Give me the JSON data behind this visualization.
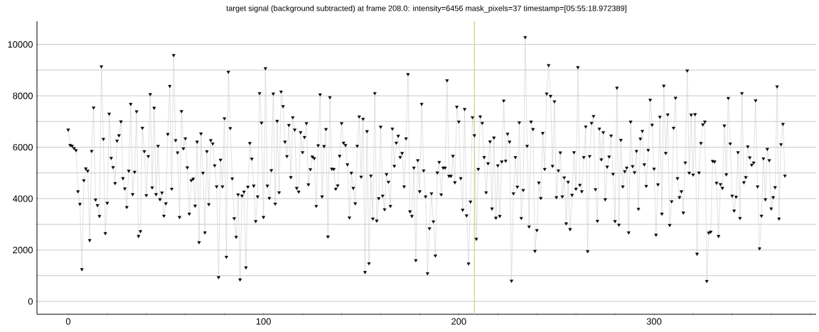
{
  "chart_data": {
    "type": "line",
    "title": "target signal (background subtracted) at frame 208.0: intensity=6456 mask_pixels=37 timestamp=[05:55:18.972389]",
    "x": [
      0,
      1,
      2,
      3,
      4,
      5,
      6,
      7,
      8,
      9,
      10,
      11,
      12,
      13,
      14,
      15,
      16,
      17,
      18,
      19,
      20,
      21,
      22,
      23,
      24,
      25,
      26,
      27,
      28,
      29,
      30,
      31,
      32,
      33,
      34,
      35,
      36,
      37,
      38,
      39,
      40,
      41,
      42,
      43,
      44,
      45,
      46,
      47,
      48,
      49,
      50,
      51,
      52,
      53,
      54,
      55,
      56,
      57,
      58,
      59,
      60,
      61,
      62,
      63,
      64,
      65,
      66,
      67,
      68,
      69,
      70,
      71,
      72,
      73,
      74,
      75,
      76,
      77,
      78,
      79,
      80,
      81,
      82,
      83,
      84,
      85,
      86,
      87,
      88,
      89,
      90,
      91,
      92,
      93,
      94,
      95,
      96,
      97,
      98,
      99,
      100,
      101,
      102,
      103,
      104,
      105,
      106,
      107,
      108,
      109,
      110,
      111,
      112,
      113,
      114,
      115,
      116,
      117,
      118,
      119,
      120,
      121,
      122,
      123,
      124,
      125,
      126,
      127,
      128,
      129,
      130,
      131,
      132,
      133,
      134,
      135,
      136,
      137,
      138,
      139,
      140,
      141,
      142,
      143,
      144,
      145,
      146,
      147,
      148,
      149,
      150,
      151,
      152,
      153,
      154,
      155,
      156,
      157,
      158,
      159,
      160,
      161,
      162,
      163,
      164,
      165,
      166,
      167,
      168,
      169,
      170,
      171,
      172,
      173,
      174,
      175,
      176,
      177,
      178,
      179,
      180,
      181,
      182,
      183,
      184,
      185,
      186,
      187,
      188,
      189,
      190,
      191,
      192,
      193,
      194,
      195,
      196,
      197,
      198,
      199,
      200,
      201,
      202,
      203,
      204,
      205,
      206,
      207,
      208,
      209,
      210,
      211,
      212,
      213,
      214,
      215,
      216,
      217,
      218,
      219,
      220,
      221,
      222,
      223,
      224,
      225,
      226,
      227,
      228,
      229,
      230,
      231,
      232,
      233,
      234,
      235,
      236,
      237,
      238,
      239,
      240,
      241,
      242,
      243,
      244,
      245,
      246,
      247,
      248,
      249,
      250,
      251,
      252,
      253,
      254,
      255,
      256,
      257,
      258,
      259,
      260,
      261,
      262,
      263,
      264,
      265,
      266,
      267,
      268,
      269,
      270,
      271,
      272,
      273,
      274,
      275,
      276,
      277,
      278,
      279,
      280,
      281,
      282,
      283,
      284,
      285,
      286,
      287,
      288,
      289,
      290,
      291,
      292,
      293,
      294,
      295,
      296,
      297,
      298,
      299,
      300,
      301,
      302,
      303,
      304,
      305,
      306,
      307,
      308,
      309,
      310,
      311,
      312,
      313,
      314,
      315,
      316,
      317,
      318,
      319,
      320,
      321,
      322,
      323,
      324,
      325,
      326,
      327,
      328,
      329,
      330,
      331,
      332,
      333,
      334,
      335,
      336,
      337,
      338,
      339,
      340,
      341,
      342,
      343,
      344,
      345,
      346,
      347,
      348,
      349,
      350,
      351,
      352,
      353,
      354,
      355,
      356,
      357,
      358,
      359,
      360,
      361,
      362,
      363,
      364,
      365,
      366,
      367
    ],
    "values": [
      6680,
      6080,
      6050,
      5960,
      5880,
      4280,
      3790,
      1250,
      4710,
      5170,
      5080,
      2380,
      5850,
      7540,
      3960,
      3740,
      3320,
      9140,
      6320,
      2650,
      3830,
      7300,
      5580,
      5220,
      4600,
      6250,
      6460,
      7000,
      4790,
      4390,
      3670,
      5080,
      7680,
      4170,
      5040,
      7390,
      2540,
      2730,
      6750,
      5840,
      4130,
      5650,
      8060,
      4430,
      7530,
      4170,
      6050,
      3970,
      4230,
      3330,
      3810,
      6510,
      8380,
      4380,
      9580,
      6270,
      5790,
      3280,
      7400,
      5950,
      6340,
      5210,
      3410,
      4710,
      4770,
      3720,
      6210,
      2300,
      6530,
      5000,
      2680,
      5840,
      3780,
      6270,
      6140,
      5290,
      4470,
      940,
      5510,
      4470,
      7120,
      1730,
      8930,
      6740,
      4780,
      3230,
      2510,
      4160,
      850,
      4110,
      4270,
      1320,
      4460,
      6160,
      5550,
      4500,
      3120,
      4080,
      8100,
      6950,
      3280,
      9070,
      4500,
      4020,
      5100,
      8080,
      3800,
      7020,
      4240,
      8160,
      7590,
      6210,
      5650,
      6860,
      4830,
      7160,
      6680,
      4410,
      4270,
      6580,
      5800,
      6390,
      6930,
      4550,
      5140,
      5630,
      5570,
      3710,
      6070,
      8050,
      4080,
      6040,
      6700,
      2520,
      7940,
      5160,
      5150,
      4380,
      4510,
      5660,
      6930,
      6170,
      6080,
      5330,
      3260,
      5000,
      4410,
      3810,
      6050,
      7190,
      4850,
      7100,
      1140,
      6620,
      1480,
      4890,
      3220,
      8100,
      3140,
      4010,
      6790,
      4110,
      3580,
      4950,
      4650,
      3710,
      6720,
      5270,
      6170,
      6440,
      5610,
      5770,
      4470,
      6340,
      8840,
      3500,
      3320,
      5200,
      1600,
      5490,
      4280,
      7680,
      5090,
      4080,
      1090,
      2840,
      4200,
      3110,
      1780,
      5010,
      5420,
      4160,
      5200,
      5200,
      8600,
      4880,
      4880,
      5660,
      4630,
      7570,
      6990,
      4790,
      3560,
      7480,
      3340,
      1470,
      3880,
      7160,
      6460,
      2430,
      5150,
      7190,
      6940,
      5610,
      4240,
      5370,
      6220,
      3610,
      6370,
      3250,
      5290,
      3320,
      5440,
      7810,
      5470,
      6520,
      6210,
      800,
      4200,
      5610,
      4460,
      6960,
      3240,
      4330,
      10280,
      6050,
      2910,
      6990,
      6700,
      1960,
      2770,
      4620,
      4020,
      6550,
      5150,
      8080,
      9190,
      7990,
      5270,
      7780,
      4050,
      5090,
      5790,
      4080,
      4820,
      3030,
      4650,
      2810,
      4140,
      5800,
      4380,
      9110,
      4530,
      4280,
      5610,
      6800,
      1950,
      5650,
      6940,
      7210,
      4360,
      3130,
      6720,
      5520,
      6580,
      3970,
      5240,
      5630,
      6450,
      4960,
      3120,
      8310,
      2980,
      6280,
      4470,
      5060,
      5200,
      2680,
      6990,
      5260,
      5020,
      5850,
      3600,
      6330,
      6630,
      5330,
      4490,
      5890,
      7840,
      6870,
      5160,
      2590,
      4550,
      7180,
      3410,
      8390,
      5770,
      7270,
      2970,
      3890,
      6750,
      7920,
      4790,
      4050,
      4280,
      3450,
      5400,
      8980,
      5000,
      7260,
      4930,
      7280,
      1850,
      5010,
      6160,
      6880,
      6990,
      790,
      2670,
      2710,
      5460,
      5440,
      4610,
      2540,
      4560,
      4410,
      6840,
      4940,
      7910,
      6140,
      4110,
      3530,
      4070,
      5800,
      3240,
      8100,
      4630,
      4830,
      6030,
      5600,
      5310,
      5400,
      7820,
      4470,
      2060,
      3330,
      5560,
      3970,
      5930,
      5490,
      3610,
      4050,
      4440,
      8360,
      3220,
      6110,
      6900,
      4890
    ],
    "color": "#000000",
    "marker": "triangle",
    "xlim": [
      -16,
      383
    ],
    "ylim": [
      -500,
      10900
    ],
    "xticks": [
      0,
      {
        "value": 20,
        "label": null
      },
      {
        "value": 40,
        "label": null
      },
      {
        "value": 60,
        "label": null
      },
      {
        "value": 80,
        "label": null
      },
      100,
      {
        "value": 120,
        "label": null
      },
      {
        "value": 140,
        "label": null
      },
      {
        "value": 160,
        "label": null
      },
      {
        "value": 180,
        "label": null
      },
      200,
      {
        "value": 220,
        "label": null
      },
      {
        "value": 240,
        "label": null
      },
      {
        "value": 260,
        "label": null
      },
      {
        "value": 280,
        "label": null
      },
      300,
      {
        "value": 320,
        "label": null
      },
      {
        "value": 340,
        "label": null
      },
      {
        "value": 360,
        "label": null
      },
      {
        "value": 380,
        "label": null
      }
    ],
    "yticks": [
      0,
      {
        "value": 1000,
        "label": null
      },
      2000,
      {
        "value": 3000,
        "label": null
      },
      4000,
      {
        "value": 5000,
        "label": null
      },
      6000,
      {
        "value": 7000,
        "label": null
      },
      8000,
      {
        "value": 9000,
        "label": null
      },
      10000
    ],
    "grid": "y",
    "ref_lines": [
      {
        "axis": "x",
        "value": 208,
        "color": "#c2d97a"
      }
    ]
  }
}
